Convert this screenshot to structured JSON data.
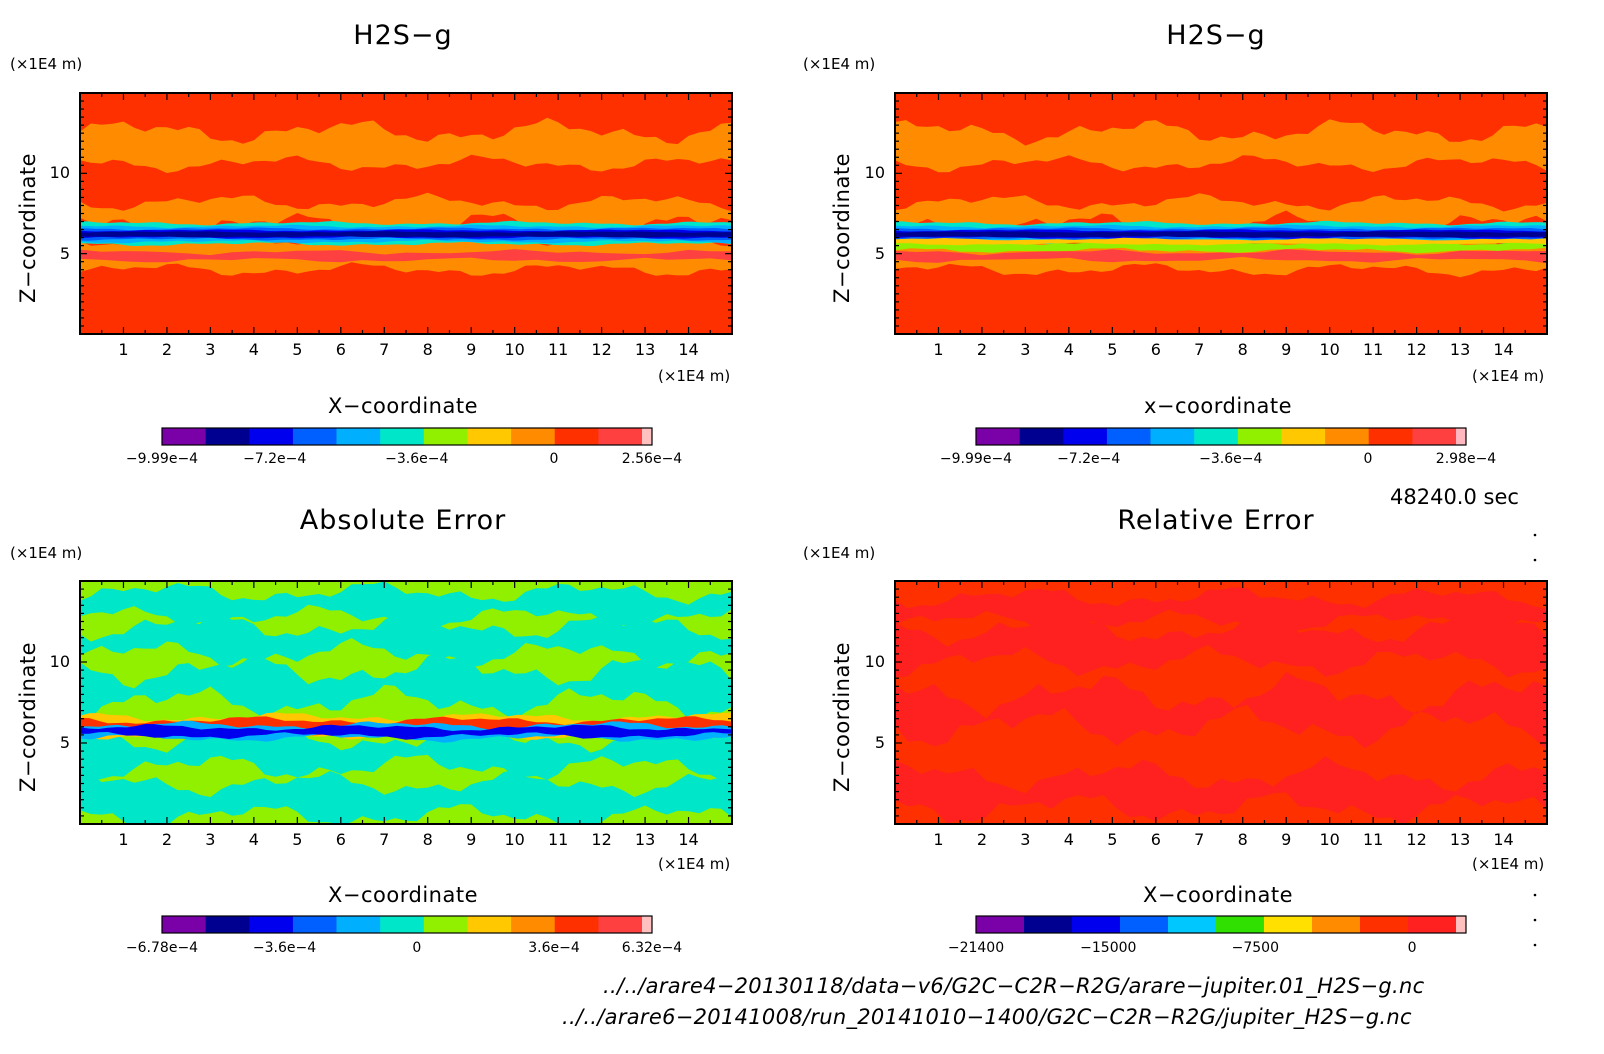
{
  "panels": [
    {
      "id": "p1",
      "title": "H2S−g",
      "xlabel": "X−coordinate",
      "ylabel": "Z−coordinate",
      "x_unit": "(×1E4 m)",
      "y_unit": "(×1E4 m)",
      "xticks": [
        "1",
        "2",
        "3",
        "4",
        "5",
        "6",
        "7",
        "8",
        "9",
        "10",
        "11",
        "12",
        "13",
        "14"
      ],
      "yticks": [
        "5",
        "10"
      ],
      "colorbar": {
        "colors": [
          "#7a00a8",
          "#000090",
          "#0000ee",
          "#0060ff",
          "#00b0ff",
          "#00e6c8",
          "#90f000",
          "#ffc800",
          "#ff8c00",
          "#ff3000",
          "#ff4040",
          "#ffc0c0"
        ],
        "labels": [
          "−9.99e−4",
          "−7.2e−4",
          "−3.6e−4",
          "0",
          "2.56e−4"
        ]
      }
    },
    {
      "id": "p2",
      "title": "H2S−g",
      "xlabel": "x−coordinate",
      "ylabel": "Z−coordinate",
      "x_unit": "(×1E4 m)",
      "y_unit": "(×1E4 m)",
      "xticks": [
        "1",
        "2",
        "3",
        "4",
        "5",
        "6",
        "7",
        "8",
        "9",
        "10",
        "11",
        "12",
        "13",
        "14"
      ],
      "yticks": [
        "5",
        "10"
      ],
      "colorbar": {
        "colors": [
          "#7a00a8",
          "#000090",
          "#0000ee",
          "#0060ff",
          "#00b0ff",
          "#00e6c8",
          "#90f000",
          "#ffc800",
          "#ff8c00",
          "#ff3000",
          "#ff4040",
          "#ffb8c0"
        ],
        "labels": [
          "−9.99e−4",
          "−7.2e−4",
          "−3.6e−4",
          "0",
          "2.98e−4"
        ]
      }
    },
    {
      "id": "p3",
      "title": "Absolute Error",
      "xlabel": "X−coordinate",
      "ylabel": "Z−coordinate",
      "x_unit": "(×1E4 m)",
      "y_unit": "(×1E4 m)",
      "xticks": [
        "1",
        "2",
        "3",
        "4",
        "5",
        "6",
        "7",
        "8",
        "9",
        "10",
        "11",
        "12",
        "13",
        "14"
      ],
      "yticks": [
        "5",
        "10"
      ],
      "colorbar": {
        "colors": [
          "#7a00a8",
          "#000090",
          "#0000ee",
          "#0060ff",
          "#00b0ff",
          "#00e6c8",
          "#90f000",
          "#ffc800",
          "#ff8c00",
          "#ff3000",
          "#ff4040",
          "#ffc0c0"
        ],
        "labels": [
          "−6.78e−4",
          "−3.6e−4",
          "0",
          "3.6e−4",
          "6.32e−4"
        ]
      }
    },
    {
      "id": "p4",
      "title": "Relative Error",
      "xlabel": "X−coordinate",
      "ylabel": "Z−coordinate",
      "x_unit": "(×1E4 m)",
      "y_unit": "(×1E4 m)",
      "xticks": [
        "1",
        "2",
        "3",
        "4",
        "5",
        "6",
        "7",
        "8",
        "9",
        "10",
        "11",
        "12",
        "13",
        "14"
      ],
      "yticks": [
        "5",
        "10"
      ],
      "colorbar": {
        "colors": [
          "#7a00a8",
          "#000090",
          "#0000ee",
          "#0060ff",
          "#00c8ff",
          "#30e000",
          "#ffe000",
          "#ff8c00",
          "#ff3000",
          "#ff2020",
          "#ffc0c0"
        ],
        "labels": [
          "−21400",
          "−15000",
          "−7500",
          "0"
        ]
      }
    }
  ],
  "time_label": "48240.0 sec",
  "file_paths": [
    "../../arare4−20130118/data−v6/G2C−C2R−R2G/arare−jupiter.01_H2S−g.nc",
    "../../arare6−20141008/run_20141010−1400/G2C−C2R−R2G/jupiter_H2S−g.nc"
  ],
  "chart_data": [
    {
      "type": "heatmap",
      "title": "H2S−g",
      "xlabel": "X−coordinate (×1E4 m)",
      "ylabel": "Z−coordinate (×1E4 m)",
      "xlim": [
        0,
        15
      ],
      "ylim": [
        0,
        15
      ],
      "colorbar_range": [
        -0.000999,
        0.000256
      ],
      "colorbar_ticks": [
        -0.000999,
        -0.00072,
        -0.00036,
        0,
        0.000256
      ],
      "bands": [
        {
          "z": [
            0,
            4.5
          ],
          "level": "red",
          "value": 0.0001
        },
        {
          "z": [
            4.5,
            5.7
          ],
          "level": "orange",
          "value": 0
        },
        {
          "z": [
            5.7,
            6.8
          ],
          "level": "blue",
          "value": -0.0008
        },
        {
          "z": [
            6.8,
            11.5
          ],
          "level": "orange/red",
          "value": 0
        },
        {
          "z": [
            11.5,
            15
          ],
          "level": "red",
          "value": 0.0001
        }
      ]
    },
    {
      "type": "heatmap",
      "title": "H2S−g",
      "xlabel": "x−coordinate (×1E4 m)",
      "ylabel": "Z−coordinate (×1E4 m)",
      "xlim": [
        0,
        15
      ],
      "ylim": [
        0,
        15
      ],
      "colorbar_range": [
        -0.000999,
        0.000298
      ],
      "colorbar_ticks": [
        -0.000999,
        -0.00072,
        -0.00036,
        0,
        0.000298
      ],
      "bands": [
        {
          "z": [
            0,
            4
          ],
          "level": "red",
          "value": 0.0001
        },
        {
          "z": [
            4,
            5.7
          ],
          "level": "orange",
          "value": 0
        },
        {
          "z": [
            5.7,
            6.8
          ],
          "level": "blue",
          "value": -0.0008
        },
        {
          "z": [
            6.8,
            11.5
          ],
          "level": "red/orange",
          "value": 5e-05
        },
        {
          "z": [
            11.5,
            15
          ],
          "level": "red",
          "value": 0.0001
        }
      ]
    },
    {
      "type": "heatmap",
      "title": "Absolute Error",
      "xlabel": "X−coordinate (×1E4 m)",
      "ylabel": "Z−coordinate (×1E4 m)",
      "xlim": [
        0,
        15
      ],
      "ylim": [
        0,
        15
      ],
      "colorbar_range": [
        -0.000678,
        0.000632
      ],
      "colorbar_ticks": [
        -0.000678,
        -0.00036,
        0,
        0.00036,
        0.000632
      ],
      "bands": [
        {
          "z": [
            0,
            5
          ],
          "level": "cyan/green",
          "value": 0
        },
        {
          "z": [
            5,
            7
          ],
          "level": "mixed red/blue",
          "value": 0
        },
        {
          "z": [
            7,
            15
          ],
          "level": "cyan/green",
          "value": 0
        }
      ]
    },
    {
      "type": "heatmap",
      "title": "Relative Error",
      "xlabel": "X−coordinate (×1E4 m)",
      "ylabel": "Z−coordinate (×1E4 m)",
      "xlim": [
        0,
        15
      ],
      "ylim": [
        0,
        15
      ],
      "colorbar_range": [
        -21400,
        1000
      ],
      "colorbar_ticks": [
        -21400,
        -15000,
        -7500,
        0
      ],
      "bands": [
        {
          "z": [
            0,
            15
          ],
          "level": "red/orange-red",
          "value": 0
        }
      ]
    }
  ]
}
